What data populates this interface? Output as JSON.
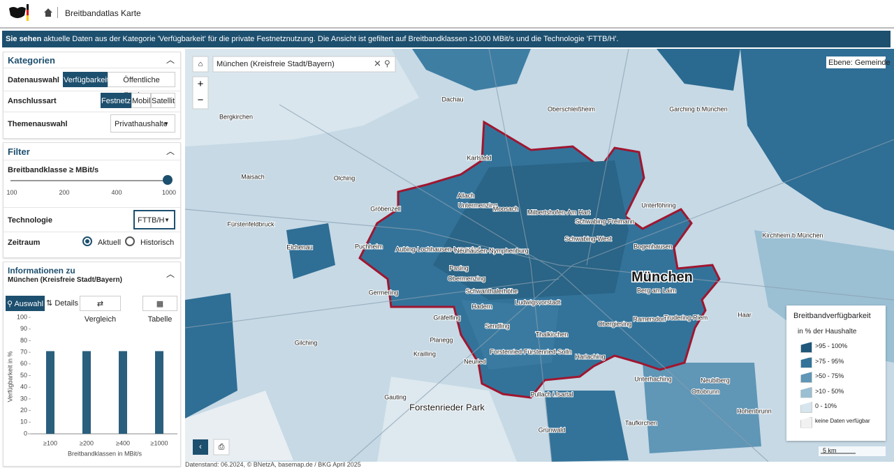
{
  "header": {
    "title": "Breitbandatlas Karte"
  },
  "banner": {
    "lead": "Sie sehen",
    "text": "aktuelle Daten aus der Kategorie 'Verfügbarkeit' für die private Festnetznutzung. Die Ansicht ist gefiltert auf Breitbandklassen ≥1000 MBit/s und die Technologie 'FTTB/H'."
  },
  "categories": {
    "title": "Kategorien",
    "data_label": "Datenauswahl",
    "data_options": [
      "Verfügbarkeit",
      "Öffentliche Förderung"
    ],
    "access_label": "Anschlussart",
    "access_options": [
      "Festnetz",
      "Mobil",
      "Satellit"
    ],
    "topic_label": "Themenauswahl",
    "topic": "Privathaushalte"
  },
  "filter": {
    "title": "Filter",
    "slider_label": "Breitbandklasse ≥ MBit/s",
    "slider_ticks": [
      100,
      200,
      400,
      1000
    ],
    "technology_label": "Technologie",
    "technology": "FTTB/H",
    "period_label": "Zeitraum",
    "periods": [
      "Aktuell",
      "Historisch"
    ]
  },
  "info": {
    "title": "Informationen zu",
    "subtitle": "München (Kreisfreie Stadt/Bayern)",
    "tabs": [
      "Auswahl",
      "Details",
      "Vergleich"
    ],
    "table_button": "Tabelle"
  },
  "chart_data": {
    "type": "bar",
    "categories": [
      "≥100",
      "≥200",
      "≥400",
      "≥1000"
    ],
    "values": [
      71,
      71,
      71,
      71
    ],
    "color": "#2b5f7e",
    "ylim": [
      0,
      100
    ],
    "yticks": [
      0,
      10,
      20,
      30,
      40,
      50,
      60,
      70,
      80,
      90,
      100
    ],
    "y_label": "Verfügbarkeit in %",
    "x_label": "Breitbandklassen in MBit/s"
  },
  "map": {
    "search": "München (Kreisfreie Stadt/Bayern)",
    "level": "Ebene: Gemeinde",
    "scale": "5 km",
    "footer": "Datenstand: 06.2024, © BNetzA, basemap.de / BKG April 2025",
    "labels": [
      "München",
      "Dachau",
      "Oberschleißheim",
      "Garching b.München",
      "Bergkirchen",
      "Karlsfeld",
      "Maisach",
      "Olching",
      "Fürstenfeldbruck",
      "Gröbenzell",
      "Puchheim",
      "Eichenau",
      "Germering",
      "Gilching",
      "Unterföhring",
      "Allach",
      "Untermenzing",
      "Moosach",
      "Milbertshofen-Am Hart",
      "Schwabing-Freimann",
      "Schwabing-West",
      "Aubing-Lochhausen-Langwied",
      "Neuhausen-Nymphenburg",
      "Pasing",
      "Obermenzing",
      "Bogenhausen",
      "Berg am Laim",
      "Trudering-Riem",
      "Hadern",
      "Schwanthalerhöhe",
      "Ludwigsvorstadt",
      "Sendling",
      "Thalkirchen",
      "Obergiesing",
      "Ramersdorf",
      "Forstenried-Fürstenried-Solln",
      "Harlaching",
      "Gräfelfing",
      "Planegg",
      "Krailling",
      "Neuried",
      "Pullach i.Isartal",
      "Unterhaching",
      "Neubiberg",
      "Ottobrunn",
      "Gauting",
      "Grünwald",
      "Taufkirchen",
      "Hohenbrunn",
      "Kirchheim b.München",
      "Haar",
      "Forstenrieder Park"
    ],
    "legend": {
      "title": "Breitbandverfügbarkeit",
      "subtitle": "in % der Haushalte",
      "items": [
        {
          "label": ">95 - 100%",
          "color": "#1f587a"
        },
        {
          "label": ">75 - 95%",
          "color": "#33739a"
        },
        {
          "label": ">50 - 75%",
          "color": "#6096b6"
        },
        {
          "label": ">10 - 50%",
          "color": "#9bbfd3"
        },
        {
          "label": "0 - 10%",
          "color": "#d6e5ee"
        },
        {
          "label": "keine Daten verfügbar",
          "color": "#f1f1f1"
        }
      ]
    }
  }
}
